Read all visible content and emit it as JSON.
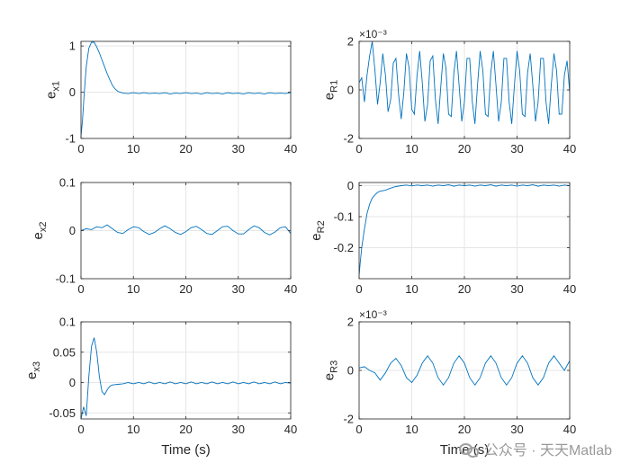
{
  "watermark": "公众号 · 天天Matlab",
  "style": {
    "line_color": "#0072BD",
    "grid_color": "#e6e6e6",
    "axis_color": "#262626"
  },
  "chart_data": [
    {
      "type": "line",
      "ylabel": "e",
      "ylabel_sub": "x1",
      "xlim": [
        0,
        40
      ],
      "ylim": [
        -1,
        1.1
      ],
      "xticks": [
        0,
        10,
        20,
        30,
        40
      ],
      "yticks": [
        -1,
        0,
        1
      ],
      "ytick_labels": [
        "-1",
        "0",
        "1"
      ],
      "exponent": "",
      "xlabel": "",
      "grid": true,
      "series": [
        {
          "x": [
            0,
            0.3,
            0.6,
            1,
            1.5,
            2,
            2.5,
            3,
            3.5,
            4,
            4.5,
            5,
            5.5,
            6,
            6.5,
            7,
            7.5,
            8,
            9,
            10,
            11,
            12,
            13,
            14,
            15,
            16,
            17,
            18,
            19,
            20,
            21,
            22,
            23,
            24,
            25,
            26,
            27,
            28,
            29,
            30,
            31,
            32,
            33,
            34,
            35,
            36,
            37,
            38,
            39,
            40
          ],
          "y": [
            -0.95,
            -0.6,
            -0.05,
            0.55,
            0.95,
            1.08,
            1.08,
            0.98,
            0.85,
            0.7,
            0.55,
            0.4,
            0.27,
            0.15,
            0.07,
            0.02,
            0.0,
            -0.02,
            -0.03,
            -0.01,
            -0.03,
            -0.01,
            -0.03,
            -0.02,
            -0.03,
            -0.01,
            -0.04,
            -0.02,
            -0.03,
            -0.01,
            -0.03,
            -0.02,
            -0.04,
            -0.01,
            -0.03,
            -0.02,
            -0.04,
            -0.01,
            -0.03,
            -0.02,
            -0.04,
            -0.01,
            -0.03,
            -0.02,
            -0.04,
            -0.01,
            -0.03,
            -0.02,
            -0.03,
            -0.01
          ]
        }
      ]
    },
    {
      "type": "line",
      "ylabel": "e",
      "ylabel_sub": "R1",
      "xlim": [
        0,
        40
      ],
      "ylim": [
        -2,
        2
      ],
      "xticks": [
        0,
        10,
        20,
        30,
        40
      ],
      "yticks": [
        -2,
        0,
        2
      ],
      "ytick_labels": [
        "-2",
        "0",
        "2"
      ],
      "exponent": "×10⁻³",
      "xlabel": "",
      "grid": true,
      "series": [
        {
          "x": [
            0,
            0.5,
            1,
            1.5,
            2,
            2.5,
            3,
            3.5,
            4,
            4.5,
            5,
            5.5,
            6,
            6.5,
            7,
            7.5,
            8,
            8.5,
            9,
            9.5,
            10,
            10.5,
            11,
            11.5,
            12,
            12.5,
            13,
            13.5,
            14,
            14.5,
            15,
            15.5,
            16,
            16.5,
            17,
            17.5,
            18,
            18.5,
            19,
            19.5,
            20,
            20.5,
            21,
            21.5,
            22,
            22.5,
            23,
            23.5,
            24,
            24.5,
            25,
            25.5,
            26,
            26.5,
            27,
            27.5,
            28,
            28.5,
            29,
            29.5,
            30,
            30.5,
            31,
            31.5,
            32,
            32.5,
            33,
            33.5,
            34,
            34.5,
            35,
            35.5,
            36,
            36.5,
            37,
            37.5,
            38,
            38.5,
            39,
            39.5,
            40
          ],
          "y": [
            0.3,
            0.5,
            -0.5,
            0.6,
            1.4,
            2.0,
            0.8,
            -0.6,
            0.3,
            1.5,
            0.6,
            -0.9,
            -0.4,
            1.1,
            1.3,
            -0.2,
            -1.2,
            -0.1,
            1.5,
            0.9,
            -0.8,
            -1.0,
            0.6,
            1.6,
            0.3,
            -1.3,
            -0.6,
            1.2,
            1.4,
            -0.4,
            -1.4,
            0.1,
            1.5,
            0.9,
            -1.0,
            -1.1,
            0.7,
            1.6,
            0.2,
            -1.3,
            -0.5,
            1.3,
            1.3,
            -0.5,
            -1.4,
            0.2,
            1.6,
            0.8,
            -1.0,
            -1.1,
            0.7,
            1.6,
            0.2,
            -1.3,
            -0.5,
            1.3,
            1.3,
            -0.5,
            -1.4,
            0.2,
            1.6,
            0.8,
            -1.0,
            -1.1,
            0.7,
            1.5,
            0.2,
            -1.3,
            -0.5,
            1.3,
            1.3,
            -0.5,
            -1.4,
            0.2,
            1.5,
            0.8,
            -1.0,
            -1.0,
            0.6,
            1.2,
            -0.1
          ]
        }
      ]
    },
    {
      "type": "line",
      "ylabel": "e",
      "ylabel_sub": "x2",
      "xlim": [
        0,
        40
      ],
      "ylim": [
        -0.1,
        0.1
      ],
      "xticks": [
        0,
        10,
        20,
        30,
        40
      ],
      "yticks": [
        -0.1,
        0,
        0.1
      ],
      "ytick_labels": [
        "-0.1",
        "0",
        "0.1"
      ],
      "exponent": "",
      "xlabel": "",
      "grid": true,
      "series": [
        {
          "x": [
            0,
            1,
            2,
            3,
            4,
            5,
            6,
            7,
            8,
            9,
            10,
            11,
            12,
            13,
            14,
            15,
            16,
            17,
            18,
            19,
            20,
            21,
            22,
            23,
            24,
            25,
            26,
            27,
            28,
            29,
            30,
            31,
            32,
            33,
            34,
            35,
            36,
            37,
            38,
            39,
            40
          ],
          "y": [
            0.0,
            0.004,
            0.002,
            0.008,
            0.006,
            0.012,
            0.004,
            -0.004,
            -0.006,
            0.002,
            0.008,
            0.006,
            -0.002,
            -0.008,
            -0.004,
            0.004,
            0.01,
            0.004,
            -0.004,
            -0.008,
            -0.002,
            0.006,
            0.009,
            0.002,
            -0.006,
            -0.008,
            0.0,
            0.008,
            0.009,
            0.0,
            -0.007,
            -0.007,
            0.002,
            0.01,
            0.006,
            -0.004,
            -0.009,
            -0.003,
            0.006,
            0.008,
            -0.006
          ]
        }
      ]
    },
    {
      "type": "line",
      "ylabel": "e",
      "ylabel_sub": "R2",
      "xlim": [
        0,
        40
      ],
      "ylim": [
        -0.3,
        0.01
      ],
      "xticks": [
        0,
        10,
        20,
        30,
        40
      ],
      "yticks": [
        -0.2,
        -0.1,
        0
      ],
      "ytick_labels": [
        "-0.2",
        "-0.1",
        "0"
      ],
      "exponent": "",
      "xlabel": "",
      "grid": true,
      "series": [
        {
          "x": [
            0,
            0.2,
            0.5,
            1,
            1.5,
            2,
            2.5,
            3,
            3.5,
            4,
            5,
            6,
            7,
            8,
            9,
            10,
            11,
            12,
            13,
            14,
            15,
            16,
            17,
            18,
            19,
            20,
            21,
            22,
            23,
            24,
            25,
            26,
            27,
            28,
            29,
            30,
            31,
            32,
            33,
            34,
            35,
            36,
            37,
            38,
            39,
            40
          ],
          "y": [
            -0.29,
            -0.25,
            -0.2,
            -0.14,
            -0.09,
            -0.06,
            -0.04,
            -0.03,
            -0.022,
            -0.018,
            -0.015,
            -0.008,
            -0.003,
            0.0,
            0.002,
            -0.001,
            0.002,
            0.0,
            0.002,
            -0.002,
            0.002,
            0.0,
            0.003,
            -0.002,
            0.002,
            0.0,
            0.002,
            -0.002,
            0.002,
            0.0,
            0.003,
            -0.002,
            0.002,
            0.0,
            0.002,
            -0.002,
            0.002,
            0.0,
            0.003,
            -0.002,
            0.002,
            0.0,
            0.002,
            -0.002,
            0.002,
            0.0
          ]
        }
      ]
    },
    {
      "type": "line",
      "ylabel": "e",
      "ylabel_sub": "x3",
      "xlim": [
        0,
        40
      ],
      "ylim": [
        -0.06,
        0.1
      ],
      "xticks": [
        0,
        10,
        20,
        30,
        40
      ],
      "yticks": [
        -0.05,
        0,
        0.05,
        0.1
      ],
      "ytick_labels": [
        "-0.05",
        "0",
        "0.05",
        "0.1"
      ],
      "exponent": "",
      "xlabel": "Time (s)",
      "grid": true,
      "series": [
        {
          "x": [
            0,
            0.5,
            1,
            1.5,
            2,
            2.5,
            3,
            3.5,
            4,
            4.5,
            5,
            5.5,
            6,
            7,
            8,
            9,
            10,
            11,
            12,
            13,
            14,
            15,
            16,
            17,
            18,
            19,
            20,
            21,
            22,
            23,
            24,
            25,
            26,
            27,
            28,
            29,
            30,
            31,
            32,
            33,
            34,
            35,
            36,
            37,
            38,
            39,
            40
          ],
          "y": [
            -0.06,
            -0.04,
            -0.055,
            0.01,
            0.06,
            0.074,
            0.05,
            0.01,
            -0.015,
            -0.02,
            -0.012,
            -0.006,
            -0.004,
            -0.003,
            -0.002,
            0.0,
            -0.002,
            0.0,
            -0.002,
            0.001,
            -0.002,
            0.0,
            -0.002,
            0.001,
            -0.002,
            0.0,
            -0.002,
            0.001,
            -0.002,
            0.0,
            -0.002,
            0.001,
            -0.002,
            0.0,
            -0.002,
            0.001,
            -0.002,
            0.0,
            -0.002,
            0.001,
            -0.002,
            0.0,
            -0.002,
            0.001,
            -0.002,
            0.0,
            -0.001
          ]
        }
      ]
    },
    {
      "type": "line",
      "ylabel": "e",
      "ylabel_sub": "R3",
      "xlim": [
        0,
        40
      ],
      "ylim": [
        -2,
        2
      ],
      "xticks": [
        0,
        10,
        20,
        30,
        40
      ],
      "yticks": [
        -2,
        0,
        2
      ],
      "ytick_labels": [
        "-2",
        "0",
        "2"
      ],
      "exponent": "×10⁻³",
      "xlabel": "Time (s)",
      "grid": true,
      "series": [
        {
          "x": [
            0,
            1,
            2,
            3,
            4,
            5,
            6,
            7,
            8,
            9,
            10,
            11,
            12,
            13,
            14,
            15,
            16,
            17,
            18,
            19,
            20,
            21,
            22,
            23,
            24,
            25,
            26,
            27,
            28,
            29,
            30,
            31,
            32,
            33,
            34,
            35,
            36,
            37,
            38,
            39,
            40
          ],
          "y": [
            0.1,
            0.15,
            0.0,
            -0.1,
            -0.4,
            -0.1,
            0.3,
            0.5,
            0.2,
            -0.3,
            -0.5,
            -0.2,
            0.3,
            0.6,
            0.3,
            -0.3,
            -0.6,
            -0.3,
            0.3,
            0.6,
            0.3,
            -0.3,
            -0.6,
            -0.3,
            0.3,
            0.6,
            0.3,
            -0.3,
            -0.6,
            -0.3,
            0.3,
            0.6,
            0.3,
            -0.3,
            -0.6,
            -0.3,
            0.3,
            0.6,
            0.3,
            0.0,
            0.4
          ]
        }
      ]
    }
  ]
}
